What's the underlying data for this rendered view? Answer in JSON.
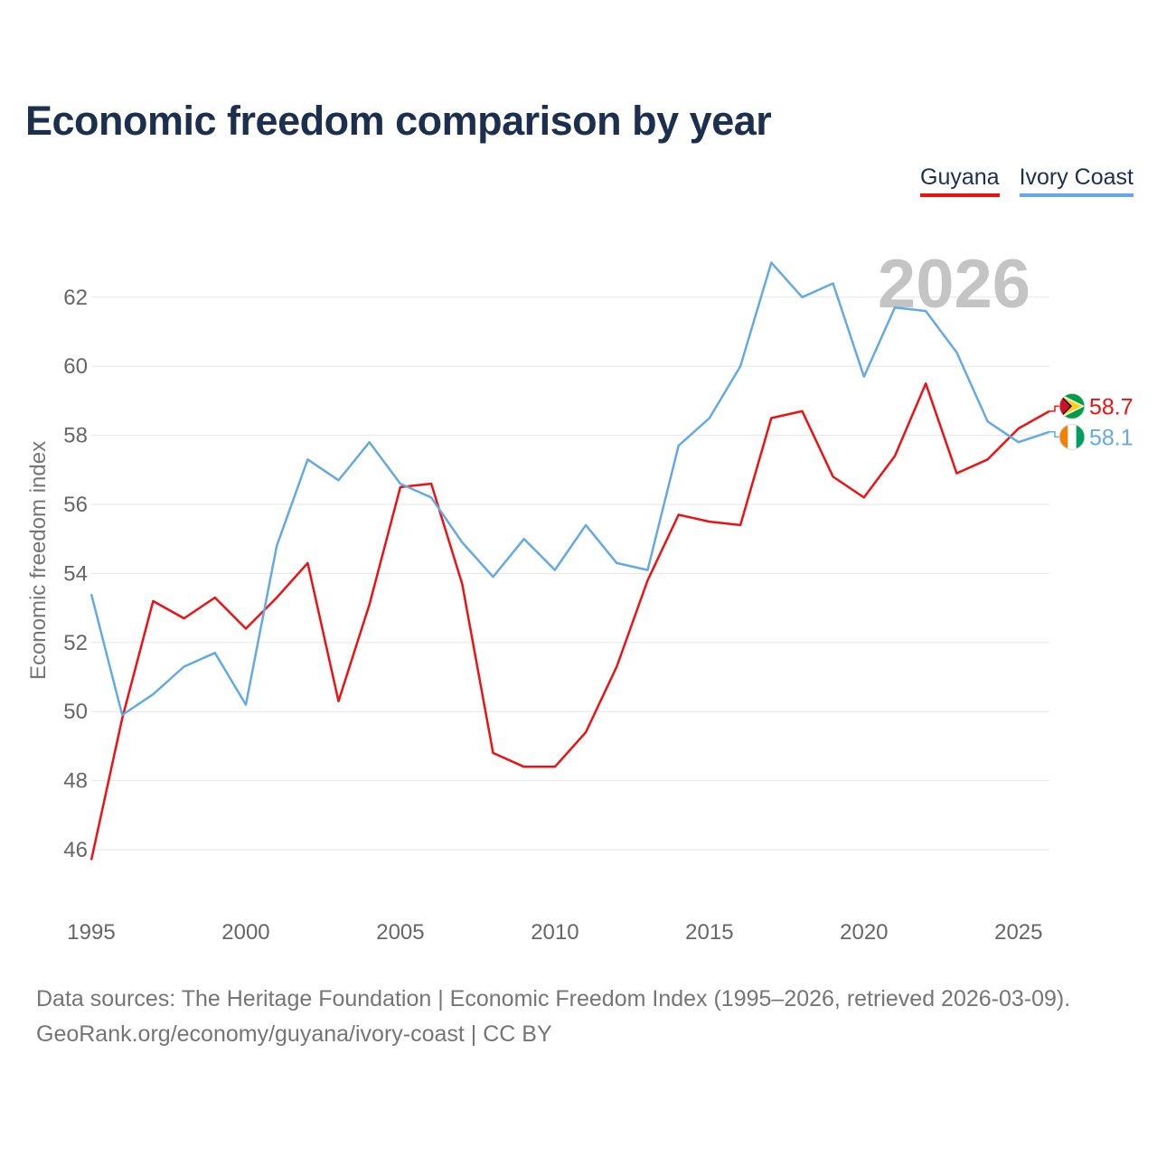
{
  "title": "Economic freedom comparison by year",
  "legend": [
    {
      "label": "Guyana",
      "color": "#ee1111"
    },
    {
      "label": "Ivory Coast",
      "color": "#64a9e6"
    }
  ],
  "year_watermark": "2026",
  "footer": {
    "line1": "Data sources: The Heritage Foundation | Economic Freedom Index (1995–2026, retrieved 2026-03-09).",
    "line2": "GeoRank.org/economy/guyana/ivory-coast | CC BY"
  },
  "chart_data": {
    "type": "line",
    "title": "Economic freedom comparison by year",
    "xlabel": "",
    "ylabel": "Economic freedom index",
    "xlim": [
      1995,
      2026
    ],
    "ylim": [
      45,
      63
    ],
    "x_ticks": [
      1995,
      2000,
      2005,
      2010,
      2015,
      2020,
      2025
    ],
    "y_ticks": [
      46,
      48,
      50,
      52,
      54,
      56,
      58,
      60,
      62
    ],
    "grid": true,
    "legend_position": "top-right",
    "x": [
      1995,
      1996,
      1997,
      1998,
      1999,
      2000,
      2001,
      2002,
      2003,
      2004,
      2005,
      2006,
      2007,
      2008,
      2009,
      2010,
      2011,
      2012,
      2013,
      2014,
      2015,
      2016,
      2017,
      2018,
      2019,
      2020,
      2021,
      2022,
      2023,
      2024,
      2025,
      2026
    ],
    "series": [
      {
        "name": "Guyana",
        "color": "#ee1111",
        "end_label": "58.7",
        "flag": "guyana-flag-icon",
        "values": [
          45.7,
          49.8,
          53.2,
          52.7,
          53.3,
          52.4,
          53.3,
          54.3,
          50.3,
          53.1,
          56.5,
          56.6,
          53.7,
          48.8,
          48.4,
          48.4,
          49.4,
          51.3,
          53.8,
          55.7,
          55.5,
          55.4,
          58.5,
          58.7,
          56.8,
          56.2,
          57.4,
          59.5,
          56.9,
          57.3,
          58.2,
          58.7
        ]
      },
      {
        "name": "Ivory Coast",
        "color": "#64a9e6",
        "end_label": "58.1",
        "flag": "ivory-coast-flag-icon",
        "values": [
          53.4,
          49.9,
          50.5,
          51.3,
          51.7,
          50.2,
          54.8,
          57.3,
          56.7,
          57.8,
          56.6,
          56.2,
          54.9,
          53.9,
          55.0,
          54.1,
          55.4,
          54.3,
          54.1,
          57.7,
          58.5,
          60.0,
          63.0,
          62.0,
          62.4,
          59.7,
          61.7,
          61.6,
          60.4,
          58.4,
          57.8,
          58.1
        ]
      }
    ]
  }
}
